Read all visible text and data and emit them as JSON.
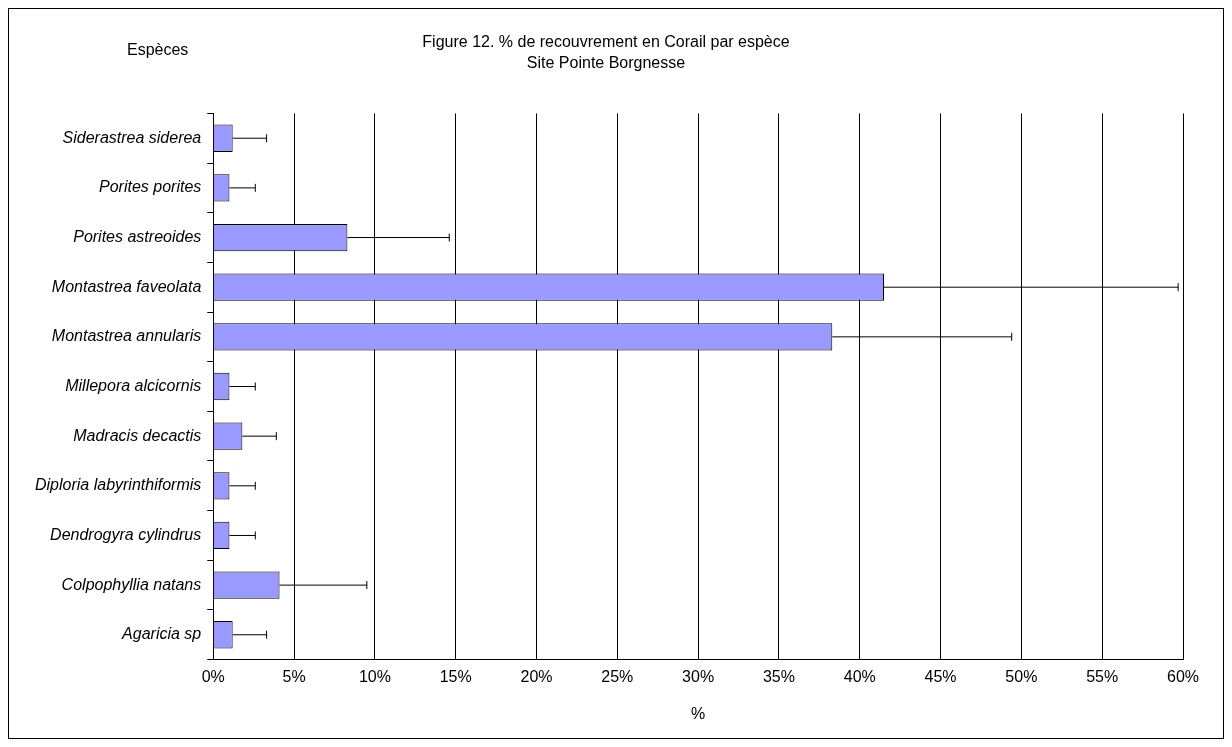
{
  "chart_data": {
    "type": "bar",
    "orientation": "horizontal",
    "title": "Figure 12. % de recouvrement en Corail par espèce",
    "subtitle": "Site Pointe Borgnesse",
    "ylabel": "Espèces",
    "xlabel": "%",
    "categories": [
      "Siderastrea siderea",
      "Porites porites",
      "Porites astreoides",
      "Montastrea faveolata",
      "Montastrea annularis",
      "Millepora alcicornis",
      "Madracis decactis",
      "Diploria labyrinthiformis",
      "Dendrogyra cylindrus",
      "Colpophyllia natans",
      "Agaricia sp"
    ],
    "values": [
      1.2,
      1.0,
      8.3,
      41.5,
      38.3,
      1.0,
      1.8,
      1.0,
      1.0,
      4.1,
      1.2
    ],
    "errors": [
      [
        1.2,
        3.3
      ],
      [
        1.0,
        2.6
      ],
      [
        8.3,
        14.6
      ],
      [
        41.5,
        59.7
      ],
      [
        38.3,
        49.4
      ],
      [
        1.0,
        2.6
      ],
      [
        1.8,
        3.9
      ],
      [
        1.0,
        2.6
      ],
      [
        1.0,
        2.6
      ],
      [
        4.1,
        9.5
      ],
      [
        1.2,
        3.3
      ]
    ],
    "color": "#9999ff",
    "xlim": [
      0,
      60
    ],
    "xticks": [
      {
        "value": 0,
        "label": "0%"
      },
      {
        "value": 5,
        "label": "5%"
      },
      {
        "value": 10,
        "label": "10%"
      },
      {
        "value": 15,
        "label": "15%"
      },
      {
        "value": 20,
        "label": "20%"
      },
      {
        "value": 25,
        "label": "25%"
      },
      {
        "value": 30,
        "label": "30%"
      },
      {
        "value": 35,
        "label": "35%"
      },
      {
        "value": 40,
        "label": "40%"
      },
      {
        "value": 45,
        "label": "45%"
      },
      {
        "value": 50,
        "label": "50%"
      },
      {
        "value": 55,
        "label": "55%"
      },
      {
        "value": 60,
        "label": "60%"
      }
    ],
    "grid": "x",
    "legend": false
  }
}
